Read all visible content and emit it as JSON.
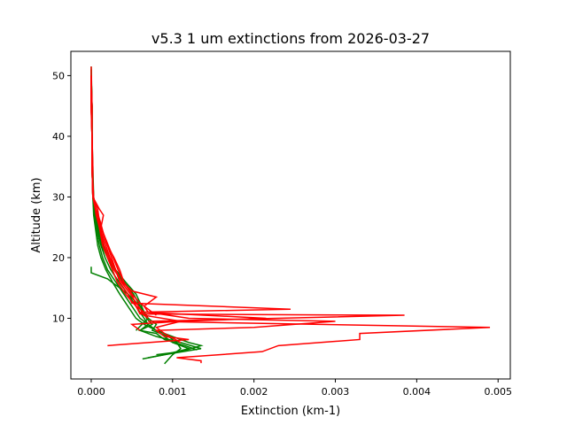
{
  "chart_data": {
    "type": "line",
    "title": "v5.3 1 um extinctions from 2026-03-27",
    "xlabel": "Extinction (km-1)",
    "ylabel": "Altitude (km)",
    "xlim": [
      -0.00025,
      0.00515
    ],
    "ylim": [
      0,
      54
    ],
    "xticks": [
      0.0,
      0.001,
      0.002,
      0.003,
      0.004,
      0.005
    ],
    "xtick_labels": [
      "0.000",
      "0.001",
      "0.002",
      "0.003",
      "0.004",
      "0.005"
    ],
    "yticks": [
      10,
      20,
      30,
      40,
      50
    ],
    "ytick_labels": [
      "10",
      "20",
      "30",
      "40",
      "50"
    ],
    "grid": false,
    "colors": {
      "green": "#008000",
      "red": "#ff0000"
    },
    "series": [
      {
        "color": "green",
        "y": [
          51.5,
          45,
          40,
          35,
          30,
          27,
          25,
          22,
          20,
          18,
          16,
          14,
          12,
          10,
          9,
          8,
          7,
          6,
          5,
          4,
          3.5
        ],
        "x": [
          0,
          1e-05,
          1e-05,
          1e-05,
          2e-05,
          4e-05,
          6e-05,
          0.0001,
          0.00014,
          0.0002,
          0.0003,
          0.0004,
          0.0005,
          0.0006,
          0.0007,
          0.0008,
          0.0009,
          0.001,
          0.0012,
          0.0009,
          0.0007
        ]
      },
      {
        "color": "green",
        "y": [
          51,
          45,
          40,
          35,
          30,
          27,
          25,
          22,
          20,
          18,
          16,
          14,
          12,
          10,
          9,
          8,
          7,
          6,
          5.5,
          4.5,
          4
        ],
        "x": [
          0,
          0,
          1e-05,
          1e-05,
          2e-05,
          3e-05,
          5e-05,
          8e-05,
          0.00012,
          0.00018,
          0.00026,
          0.00035,
          0.00045,
          0.00055,
          0.00065,
          0.0008,
          0.001,
          0.0012,
          0.00135,
          0.0011,
          0.0008
        ]
      },
      {
        "color": "green",
        "y": [
          50,
          45,
          40,
          35,
          30,
          27,
          25,
          22,
          20,
          18,
          16,
          14,
          12,
          10,
          9,
          8,
          7,
          6,
          5,
          4,
          3.3
        ],
        "x": [
          0,
          1e-05,
          1e-05,
          1e-05,
          2e-05,
          5e-05,
          7e-05,
          0.00012,
          0.00017,
          0.00024,
          0.00034,
          0.00045,
          0.00055,
          0.00065,
          0.0007,
          0.0006,
          0.0008,
          0.0011,
          0.00135,
          0.0009,
          0.00063
        ]
      },
      {
        "color": "green",
        "y": [
          50,
          45,
          40,
          35,
          30,
          27,
          25,
          22,
          20,
          18,
          16,
          14,
          12,
          10,
          9,
          8,
          7,
          6,
          5,
          4,
          2.5
        ],
        "x": [
          0,
          1e-05,
          1e-05,
          1e-05,
          3e-05,
          5e-05,
          8e-05,
          0.00013,
          0.0002,
          0.00028,
          0.0004,
          0.00052,
          0.0006,
          0.0007,
          0.0008,
          0.00075,
          0.00095,
          0.00105,
          0.0011,
          0.001,
          0.0009
        ]
      },
      {
        "color": "green",
        "y": [
          49,
          45,
          40,
          35,
          30,
          27,
          25,
          22,
          20,
          18,
          16,
          14,
          12,
          10,
          9,
          8,
          7.5,
          6.5,
          5.5,
          4.8
        ],
        "x": [
          0,
          1e-05,
          1e-05,
          2e-05,
          3e-05,
          5e-05,
          9e-05,
          0.00015,
          0.00022,
          0.0003,
          0.00042,
          0.00055,
          0.00062,
          0.00068,
          0.00075,
          0.0006,
          0.0008,
          0.0009,
          0.00115,
          0.0013
        ]
      },
      {
        "color": "green",
        "y": [
          18.5,
          17.5,
          16.5,
          14,
          12,
          10,
          8
        ],
        "x": [
          0,
          0,
          0.0002,
          0.00045,
          0.0006,
          0.0007,
          0.00055
        ]
      },
      {
        "color": "red",
        "y": [
          51.5,
          45,
          40,
          35,
          30,
          28,
          26,
          24,
          22,
          20,
          18,
          16,
          14,
          12.5,
          11.5,
          11,
          10
        ],
        "x": [
          0,
          0,
          1e-05,
          1e-05,
          2e-05,
          8e-05,
          0.0001,
          0.00015,
          0.0002,
          0.00025,
          0.0003,
          0.00035,
          0.00045,
          0.0005,
          0.00245,
          0.0006,
          0.0007
        ]
      },
      {
        "color": "red",
        "y": [
          50,
          45,
          40,
          35,
          30,
          28,
          27,
          25,
          22,
          20,
          18,
          16,
          14,
          12,
          10.7,
          10.5,
          9.5,
          8.5,
          7.5,
          6.5,
          5.5,
          4.5,
          3.5,
          3,
          2.6
        ],
        "x": [
          0,
          0,
          1e-05,
          1e-05,
          2e-05,
          0.0001,
          0.00015,
          0.00012,
          0.0002,
          0.00028,
          0.00035,
          0.0004,
          0.0005,
          0.00055,
          0.0006,
          0.00385,
          0.0007,
          0.0049,
          0.0033,
          0.0033,
          0.0023,
          0.0021,
          0.00105,
          0.00135,
          0.00135
        ]
      },
      {
        "color": "red",
        "y": [
          50,
          45,
          40,
          35,
          30,
          27,
          25,
          22,
          20,
          18,
          16,
          14.5,
          13.5,
          12,
          11,
          10,
          9.5,
          8.5,
          8,
          7,
          6.5,
          5.5
        ],
        "x": [
          0,
          1e-05,
          1e-05,
          1e-05,
          3e-05,
          6e-05,
          0.0001,
          0.00016,
          0.00022,
          0.00028,
          0.00038,
          0.0005,
          0.0008,
          0.00065,
          0.0007,
          0.0012,
          0.003,
          0.002,
          0.0008,
          0.0009,
          0.0012,
          0.0002
        ]
      },
      {
        "color": "red",
        "y": [
          49,
          45,
          40,
          35,
          30,
          27,
          25,
          22,
          20,
          18,
          16,
          14,
          12,
          11,
          10,
          9.5,
          9,
          8
        ],
        "x": [
          0,
          1e-05,
          1e-05,
          2e-05,
          2e-05,
          7e-05,
          0.0001,
          0.00014,
          0.0002,
          0.00026,
          0.00032,
          0.00042,
          0.00055,
          0.00065,
          0.00215,
          0.0011,
          0.0005,
          0.0006
        ]
      },
      {
        "color": "red",
        "y": [
          50,
          45,
          40,
          35,
          30,
          28,
          26,
          24,
          22,
          20,
          18,
          16,
          14,
          12,
          10.5,
          9.5,
          8.5,
          7.5,
          6
        ],
        "x": [
          0,
          0,
          1e-05,
          1e-05,
          2e-05,
          5e-05,
          9e-05,
          0.00013,
          0.00018,
          0.00023,
          0.0003,
          0.00037,
          0.00048,
          0.00058,
          0.00065,
          0.0011,
          0.0008,
          0.0009,
          0.0011
        ]
      },
      {
        "color": "red",
        "y": [
          48,
          44,
          40,
          35,
          30,
          28,
          26,
          24,
          22,
          20,
          18,
          16,
          14,
          12.5,
          11.5,
          10.5
        ],
        "x": [
          0,
          0,
          1e-05,
          1e-05,
          2e-05,
          6e-05,
          0.00011,
          0.00015,
          0.00021,
          0.00027,
          0.00033,
          0.0004,
          0.0005,
          0.0006,
          0.0007,
          0.0008
        ]
      }
    ]
  }
}
